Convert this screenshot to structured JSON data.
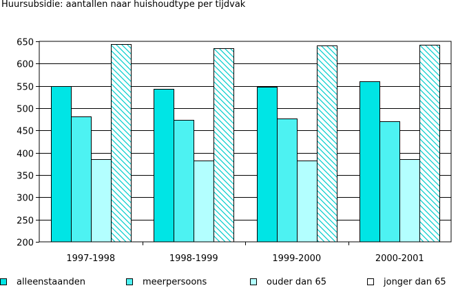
{
  "chart_data": {
    "type": "bar",
    "title": "Huursubsidie: aantallen naar huishoudtype per tijdvak",
    "xlabel": "",
    "ylabel": "",
    "ylim": [
      200,
      650
    ],
    "yticks": [
      200,
      250,
      300,
      350,
      400,
      450,
      500,
      550,
      600,
      650
    ],
    "grid": true,
    "legend_position": "bottom",
    "categories": [
      "1997-1998",
      "1998-1999",
      "1999-2000",
      "2000-2001"
    ],
    "series": [
      {
        "name": "alleenstaanden",
        "color": "#00e5e5",
        "pattern": "solid",
        "values": [
          550,
          543,
          548,
          560
        ]
      },
      {
        "name": "meerpersoons",
        "color": "#4df2f2",
        "pattern": "solid",
        "values": [
          481,
          474,
          477,
          470
        ]
      },
      {
        "name": "ouder dan 65",
        "color": "#b3ffff",
        "pattern": "solid",
        "values": [
          385,
          382,
          383,
          385
        ]
      },
      {
        "name": "jonger dan 65",
        "color": "#00cccc",
        "pattern": "hatched",
        "values": [
          644,
          634,
          641,
          643
        ]
      }
    ]
  }
}
